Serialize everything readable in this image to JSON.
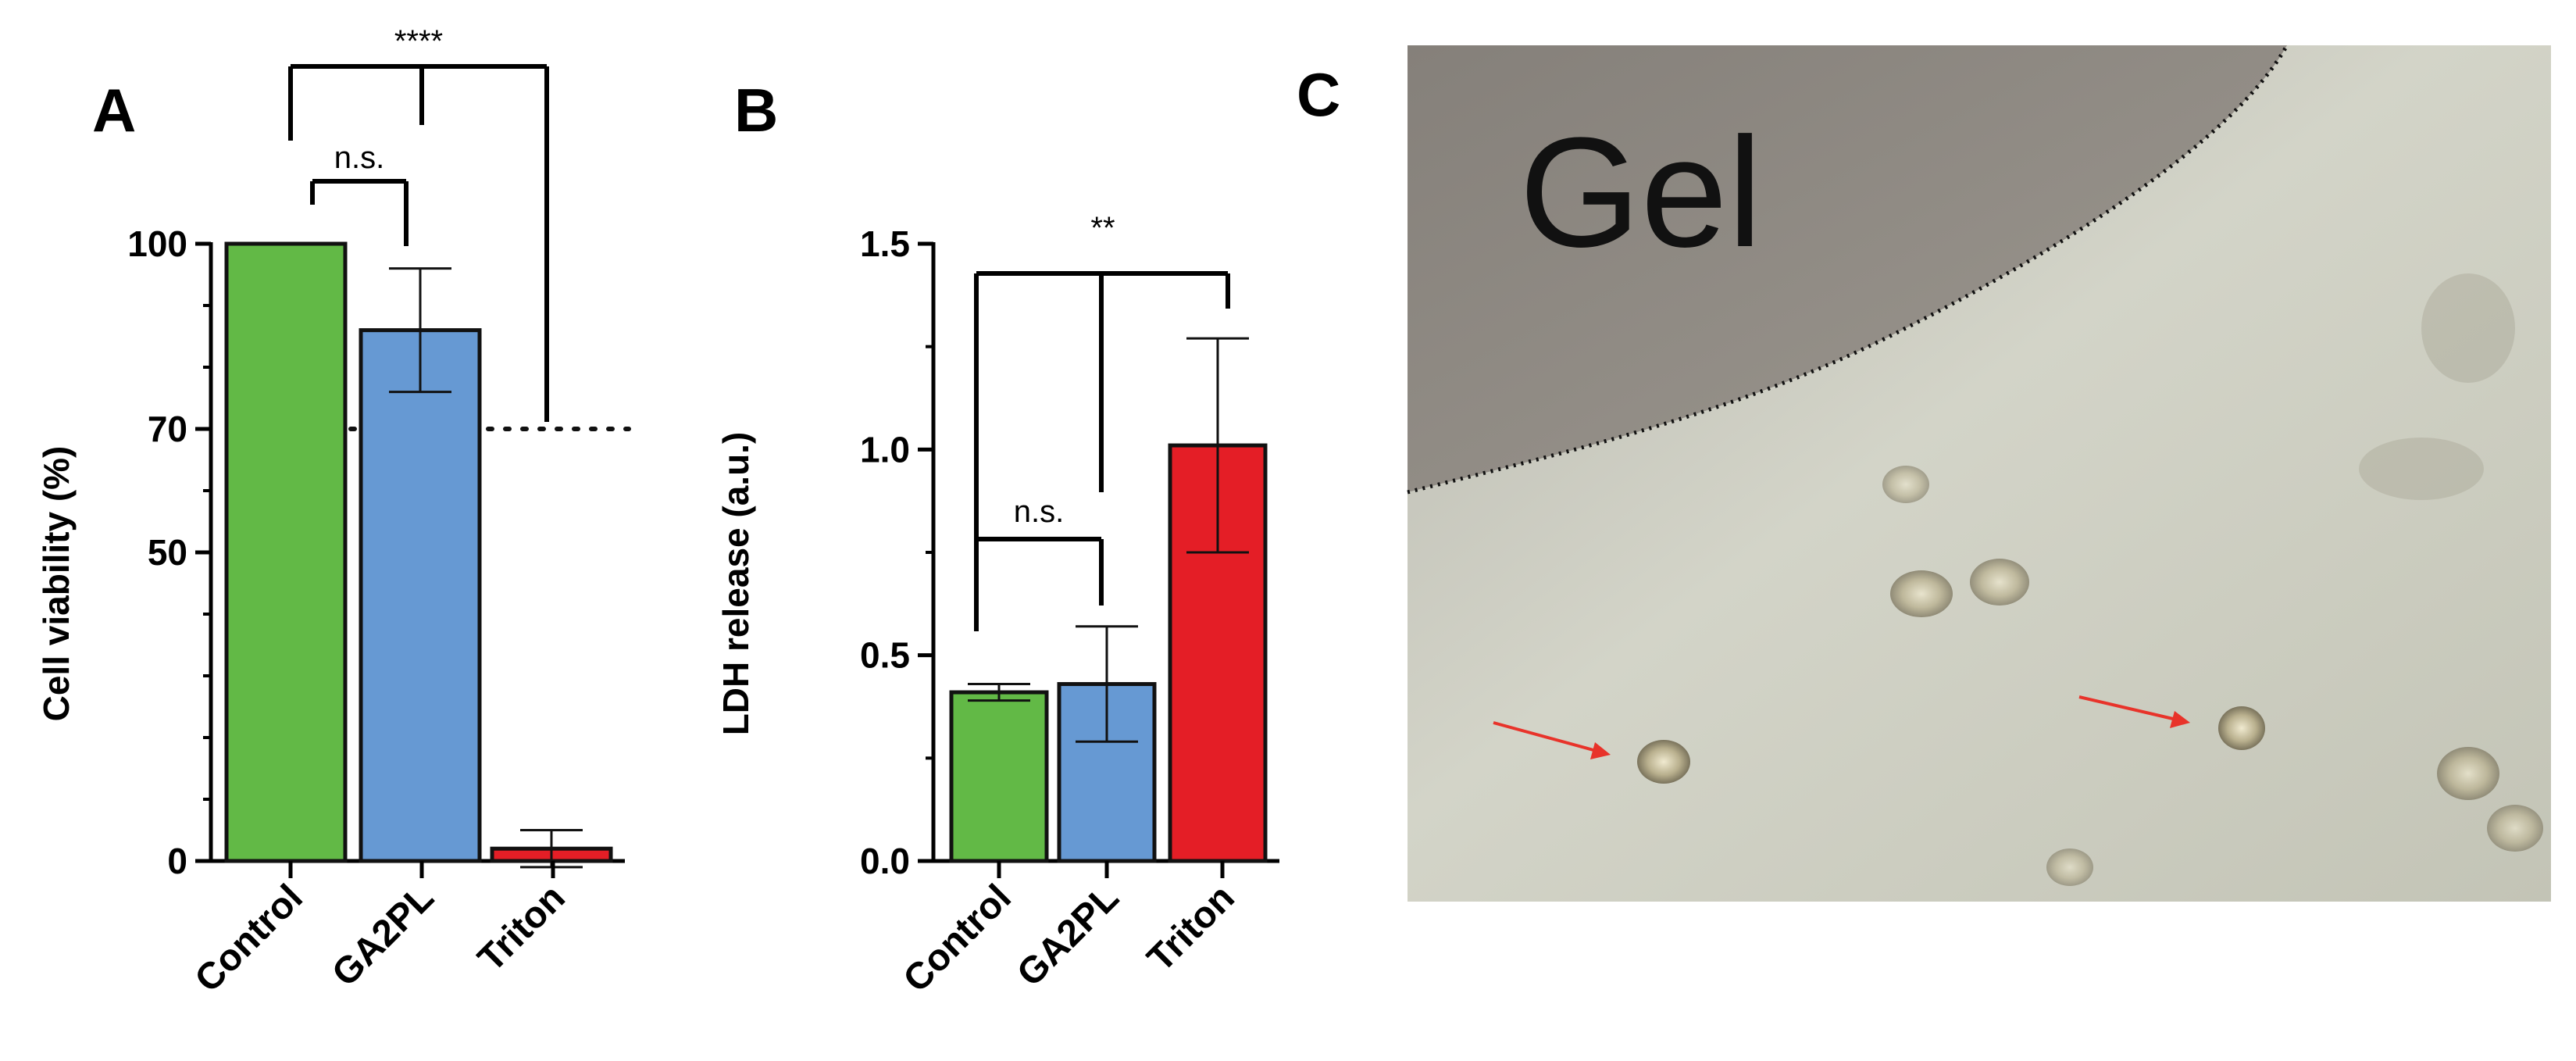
{
  "panels": {
    "A": "A",
    "B": "B",
    "C": "C"
  },
  "chart_data": [
    {
      "panel": "A",
      "type": "bar",
      "categories": [
        "Control",
        "GA2PL",
        "Triton"
      ],
      "values": [
        100,
        86,
        2
      ],
      "errors": [
        0,
        10,
        3
      ],
      "colors": [
        "#62b946",
        "#6699d3",
        "#e41e26"
      ],
      "ylabel": "Cell viability (%)",
      "xlabel": "",
      "ylim": [
        0,
        100
      ],
      "yticks": [
        0,
        50,
        70,
        100
      ],
      "ytick_labels": [
        "0",
        "50",
        "70",
        "100"
      ],
      "reference_line": {
        "value": 70,
        "style": "dotted"
      },
      "annotations": [
        {
          "text": "n.s.",
          "between": [
            "Control",
            "GA2PL"
          ]
        },
        {
          "text": "****",
          "between": [
            "Control",
            "GA2PL",
            "Triton"
          ]
        }
      ]
    },
    {
      "panel": "B",
      "type": "bar",
      "categories": [
        "Control",
        "GA2PL",
        "Triton"
      ],
      "values": [
        0.41,
        0.43,
        1.01
      ],
      "errors": [
        0.02,
        0.14,
        0.26
      ],
      "colors": [
        "#62b946",
        "#6699d3",
        "#e41e26"
      ],
      "ylabel": "LDH release (a.u.)",
      "xlabel": "",
      "ylim": [
        0,
        1.5
      ],
      "yticks": [
        0,
        0.5,
        1.0,
        1.5
      ],
      "ytick_labels": [
        "0.0",
        "0.5",
        "1.0",
        "1.5"
      ],
      "annotations": [
        {
          "text": "n.s.",
          "between": [
            "Control",
            "GA2PL"
          ]
        },
        {
          "text": "**",
          "between": [
            "Control",
            "GA2PL",
            "Triton"
          ]
        }
      ]
    }
  ],
  "micrograph": {
    "label": "Gel",
    "colors": {
      "gel_region": "#8f8b84",
      "medium": "#c9c9bd",
      "arrow": "#e8332a",
      "boundary": "#111111"
    }
  }
}
